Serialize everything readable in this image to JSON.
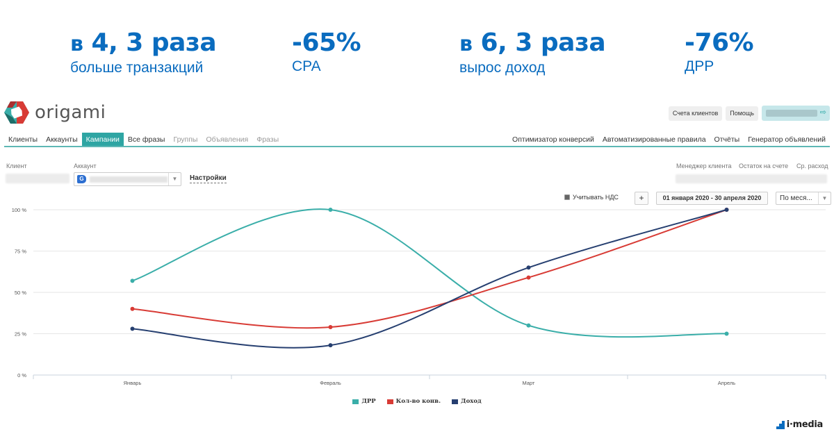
{
  "stats": [
    {
      "prefix": "в",
      "value": "4, 3 раза",
      "caption": "больше транзакций"
    },
    {
      "prefix": "",
      "value": "-65%",
      "caption": "CPA"
    },
    {
      "prefix": "в",
      "value": "6, 3 раза",
      "caption": "вырос доход"
    },
    {
      "prefix": "",
      "value": "-76%",
      "caption": "ДРР"
    }
  ],
  "app": {
    "logo_text": "origami",
    "top_buttons": [
      "Счета клиентов",
      "Помощь"
    ],
    "user_exit_icon": "logout-icon"
  },
  "nav": {
    "left": [
      {
        "label": "Клиенты",
        "state": "normal"
      },
      {
        "label": "Аккаунты",
        "state": "normal"
      },
      {
        "label": "Кампании",
        "state": "active"
      },
      {
        "label": "Все фразы",
        "state": "normal"
      },
      {
        "label": "Группы",
        "state": "disabled"
      },
      {
        "label": "Объявления",
        "state": "disabled"
      },
      {
        "label": "Фразы",
        "state": "disabled"
      }
    ],
    "right": [
      {
        "label": "Оптимизатор конверсий"
      },
      {
        "label": "Автоматизированные правила"
      },
      {
        "label": "Отчёты"
      },
      {
        "label": "Генератор объявлений"
      }
    ]
  },
  "filters": {
    "client_label": "Клиент",
    "account_label": "Аккаунт",
    "account_badge": "G",
    "settings_link": "Настройки",
    "manager_label": "Менеджер клиента",
    "balance_label": "Остаток на счете",
    "avg_spend_label": "Ср. расход",
    "vat_label": "Учитывать НДС",
    "plus_label": "+",
    "date_range": "01 января 2020 - 30 апреля 2020",
    "period_value": "По меся..."
  },
  "colors": {
    "accent": "#2ea5a3",
    "stat_blue": "#0a6cbf",
    "drr": "#3aaea9",
    "conv": "#d83b35",
    "income": "#263f70"
  },
  "chart_data": {
    "type": "line",
    "categories": [
      "Январь",
      "Февраль",
      "Март",
      "Апрель"
    ],
    "y_ticks": [
      "0 %",
      "25 %",
      "50 %",
      "75 %",
      "100 %"
    ],
    "ylim": [
      0,
      100
    ],
    "grid": true,
    "legend_position": "bottom",
    "series": [
      {
        "name": "ДРР",
        "color": "#3aaea9",
        "values": [
          57,
          100,
          30,
          25
        ]
      },
      {
        "name": "Кол-во конв.",
        "color": "#d83b35",
        "values": [
          40,
          29,
          59,
          100
        ]
      },
      {
        "name": "Доход",
        "color": "#263f70",
        "values": [
          28,
          18,
          65,
          100
        ]
      }
    ]
  },
  "footer": {
    "brand": "i·media"
  }
}
